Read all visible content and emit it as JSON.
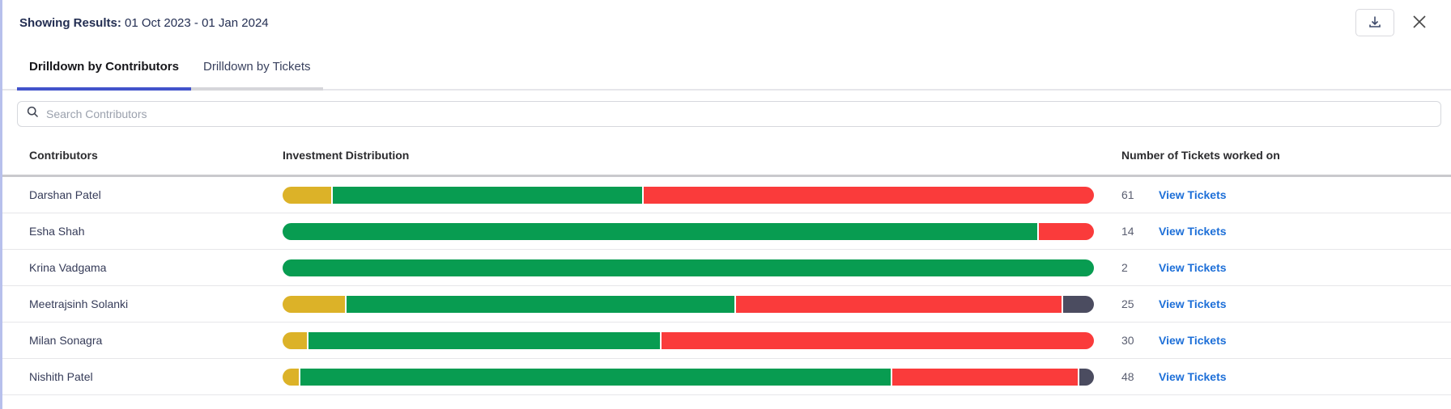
{
  "header": {
    "label": "Showing Results:",
    "range": "01 Oct 2023 - 01 Jan 2024"
  },
  "toolbar": {
    "download_icon": "download-icon",
    "close_icon": "close-icon"
  },
  "tabs": [
    {
      "label": "Drilldown by Contributors",
      "active": true
    },
    {
      "label": "Drilldown by Tickets",
      "active": false
    }
  ],
  "search": {
    "placeholder": "Search Contributors",
    "icon": "search-icon"
  },
  "table": {
    "columns": [
      "Contributors",
      "Investment Distribution",
      "Number of Tickets worked on"
    ],
    "view_tickets_label": "View Tickets",
    "rows": [
      {
        "name": "Darshan Patel",
        "tickets": 61,
        "segments": [
          {
            "color": "yellow",
            "pct": 6
          },
          {
            "color": "green",
            "pct": 38.3
          },
          {
            "color": "red",
            "pct": 55.7
          }
        ]
      },
      {
        "name": "Esha Shah",
        "tickets": 14,
        "segments": [
          {
            "color": "green",
            "pct": 93
          },
          {
            "color": "red",
            "pct": 7
          }
        ]
      },
      {
        "name": "Krina Vadgama",
        "tickets": 2,
        "segments": [
          {
            "color": "green",
            "pct": 100
          }
        ]
      },
      {
        "name": "Meetrajsinh Solanki",
        "tickets": 25,
        "segments": [
          {
            "color": "yellow",
            "pct": 7.7
          },
          {
            "color": "green",
            "pct": 48
          },
          {
            "color": "red",
            "pct": 40.3
          },
          {
            "color": "dark",
            "pct": 4
          }
        ]
      },
      {
        "name": "Milan Sonagra",
        "tickets": 30,
        "segments": [
          {
            "color": "yellow",
            "pct": 3
          },
          {
            "color": "green",
            "pct": 43.5
          },
          {
            "color": "red",
            "pct": 53.5
          }
        ]
      },
      {
        "name": "Nishith Patel",
        "tickets": 48,
        "segments": [
          {
            "color": "yellow",
            "pct": 2
          },
          {
            "color": "green",
            "pct": 73
          },
          {
            "color": "red",
            "pct": 23
          },
          {
            "color": "dark",
            "pct": 2
          }
        ]
      }
    ]
  },
  "colors": {
    "yellow": "#DCB228",
    "green": "#089C51",
    "red": "#FA3B3B",
    "dark": "#4B4C60",
    "link": "#1D6FD8",
    "tab_active": "#4253CB",
    "left_border": "#B7C0EC"
  }
}
